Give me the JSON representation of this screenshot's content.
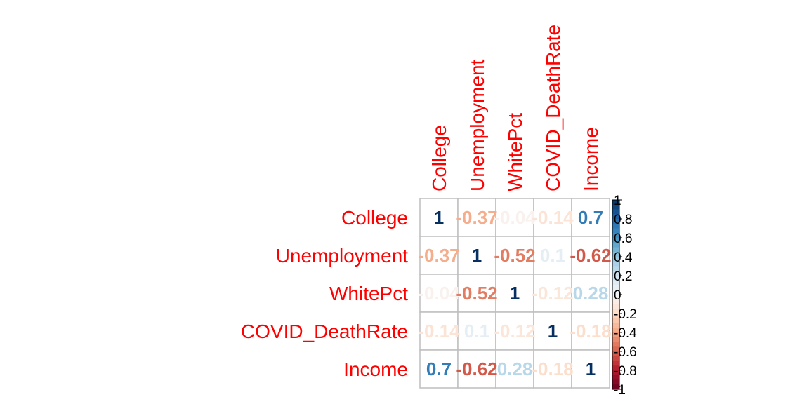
{
  "chart_data": {
    "type": "heatmap",
    "variables": [
      "College",
      "Unemployment",
      "WhitePct",
      "COVID_DeathRate",
      "Income"
    ],
    "matrix": [
      [
        1,
        -0.37,
        -0.04,
        -0.14,
        0.7
      ],
      [
        -0.37,
        1,
        -0.52,
        0.1,
        -0.62
      ],
      [
        -0.04,
        -0.52,
        1,
        -0.12,
        0.28
      ],
      [
        -0.14,
        0.1,
        -0.12,
        1,
        -0.18
      ],
      [
        0.7,
        -0.62,
        0.28,
        -0.18,
        1
      ]
    ],
    "colorbar_ticks": [
      1,
      0.8,
      0.6,
      0.4,
      0.2,
      0,
      -0.2,
      -0.4,
      -0.6,
      -0.8,
      -1
    ],
    "colorbar_range": [
      -1,
      1
    ],
    "colors": {
      "label": "#ff0000",
      "grid": "#bebebe",
      "negative_end": "#67001f",
      "positive_end": "#053061"
    }
  }
}
